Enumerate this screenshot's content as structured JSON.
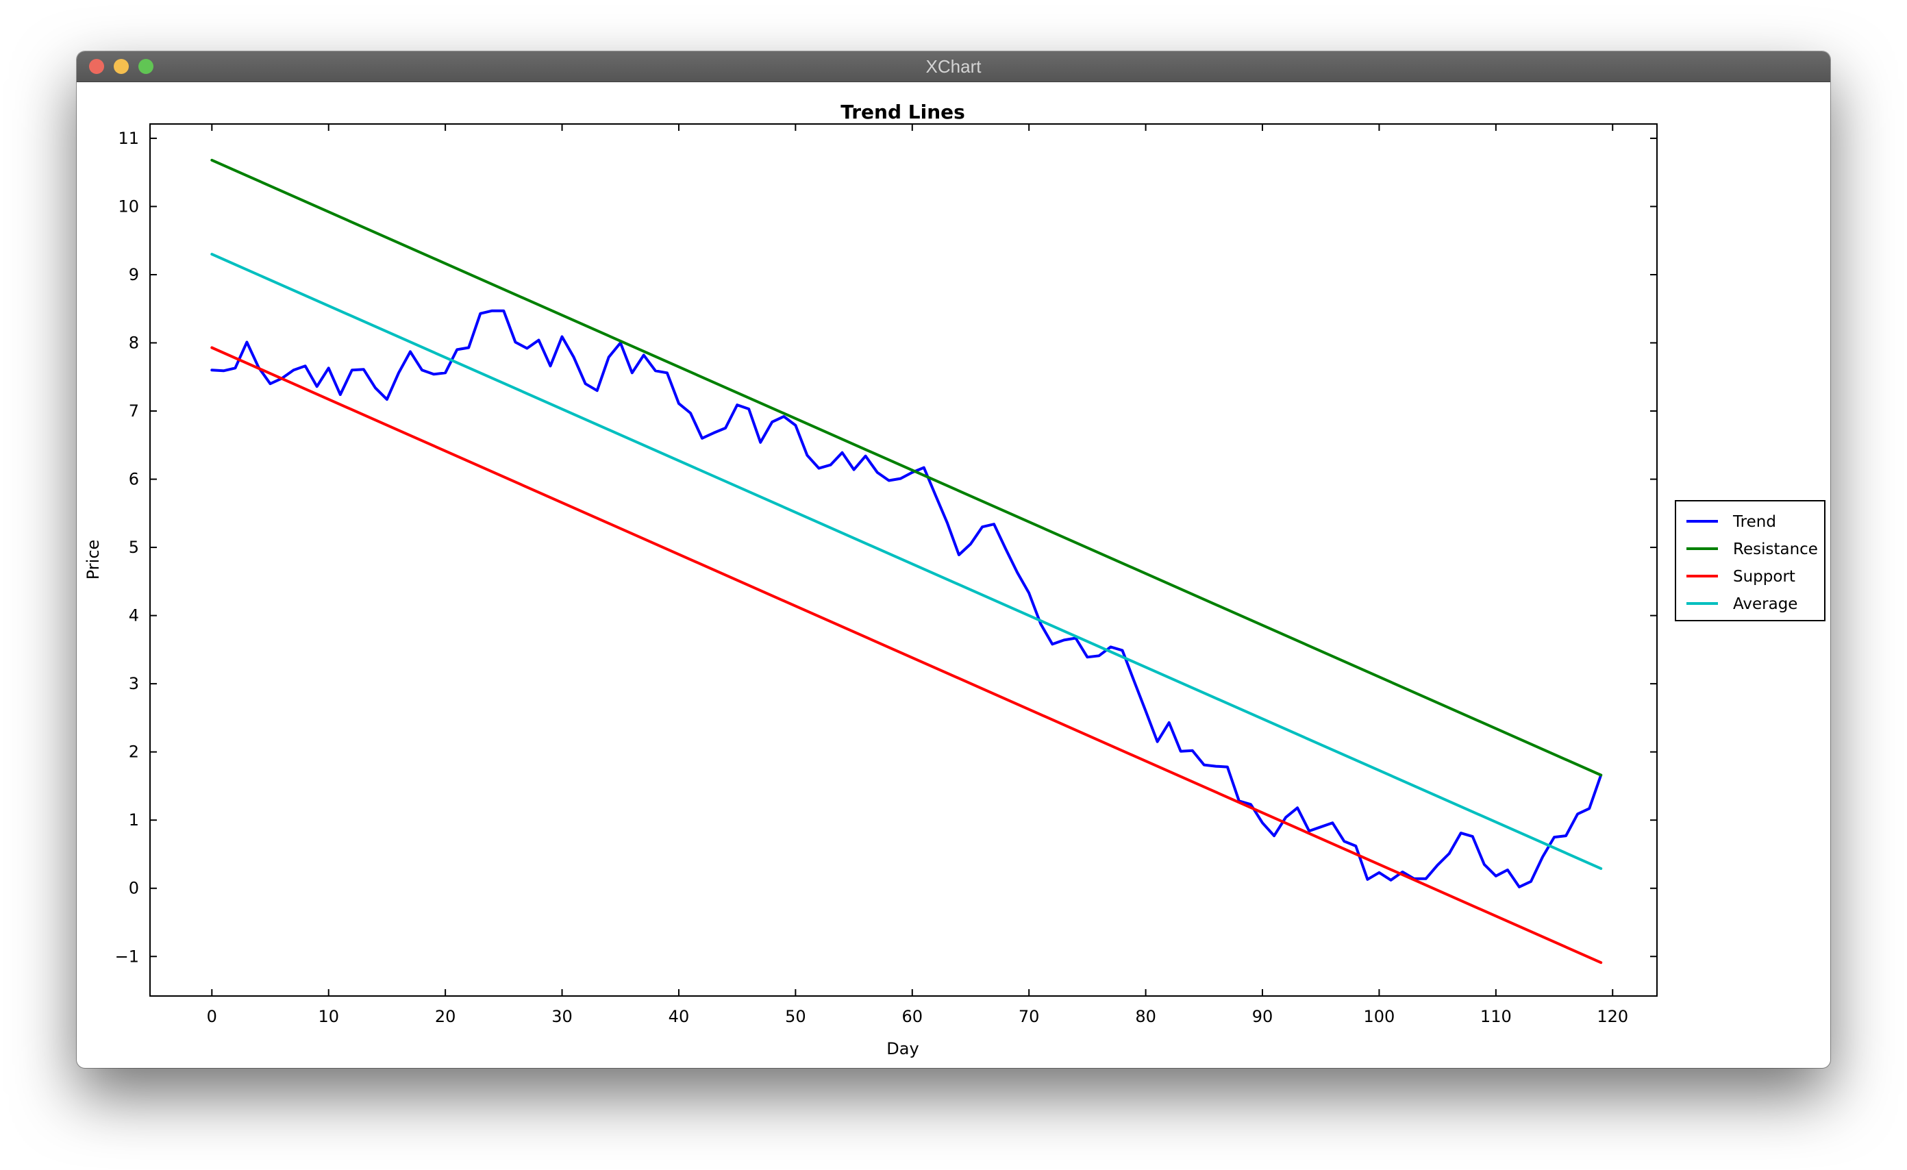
{
  "window": {
    "title": "XChart",
    "buttons": [
      {
        "name": "close",
        "color": "#ed6a5e"
      },
      {
        "name": "minimize",
        "color": "#f5bf4f"
      },
      {
        "name": "zoom",
        "color": "#61c554"
      }
    ]
  },
  "chart_data": {
    "type": "line",
    "title": "Trend Lines",
    "xlabel": "Day",
    "ylabel": "Price",
    "xlim": [
      -5.3,
      123.8
    ],
    "ylim": [
      -1.58,
      11.21
    ],
    "xticks": [
      0,
      10,
      20,
      30,
      40,
      50,
      60,
      70,
      80,
      90,
      100,
      110,
      120
    ],
    "yticks": [
      -1,
      0,
      1,
      2,
      3,
      4,
      5,
      6,
      7,
      8,
      9,
      10,
      11
    ],
    "ytick_labels": [
      "−1",
      "0",
      "1",
      "2",
      "3",
      "4",
      "5",
      "6",
      "7",
      "8",
      "9",
      "10",
      "11"
    ],
    "grid": false,
    "legend_position": "right",
    "series": [
      {
        "name": "Trend",
        "color": "#0000ff",
        "x": [
          0,
          1,
          2,
          3,
          4,
          5,
          6,
          7,
          8,
          9,
          10,
          11,
          12,
          13,
          14,
          15,
          16,
          17,
          18,
          19,
          20,
          21,
          22,
          23,
          24,
          25,
          26,
          27,
          28,
          29,
          30,
          31,
          32,
          33,
          34,
          35,
          36,
          37,
          38,
          39,
          40,
          41,
          42,
          43,
          44,
          45,
          46,
          47,
          48,
          49,
          50,
          51,
          52,
          53,
          54,
          55,
          56,
          57,
          58,
          59,
          60,
          61,
          62,
          63,
          64,
          65,
          66,
          67,
          68,
          69,
          70,
          71,
          72,
          73,
          74,
          75,
          76,
          77,
          78,
          79,
          80,
          81,
          82,
          83,
          84,
          85,
          86,
          87,
          88,
          89,
          90,
          91,
          92,
          93,
          94,
          95,
          96,
          97,
          98,
          99,
          100,
          101,
          102,
          103,
          104,
          105,
          106,
          107,
          108,
          109,
          110,
          111,
          112,
          113,
          114,
          115,
          116,
          117,
          118,
          119
        ],
        "y": [
          7.6,
          7.59,
          7.63,
          8.01,
          7.64,
          7.4,
          7.48,
          7.6,
          7.66,
          7.36,
          7.63,
          7.24,
          7.6,
          7.61,
          7.34,
          7.17,
          7.56,
          7.87,
          7.6,
          7.54,
          7.56,
          7.9,
          7.93,
          8.43,
          8.47,
          8.47,
          8.01,
          7.92,
          8.04,
          7.66,
          8.09,
          7.79,
          7.4,
          7.3,
          7.79,
          8.0,
          7.56,
          7.82,
          7.59,
          7.56,
          7.11,
          6.97,
          6.6,
          6.68,
          6.75,
          7.09,
          7.03,
          6.54,
          6.84,
          6.92,
          6.79,
          6.35,
          6.16,
          6.21,
          6.39,
          6.14,
          6.34,
          6.1,
          5.98,
          6.01,
          6.1,
          6.17,
          5.76,
          5.36,
          4.89,
          5.05,
          5.3,
          5.34,
          4.98,
          4.63,
          4.33,
          3.88,
          3.58,
          3.64,
          3.67,
          3.39,
          3.41,
          3.54,
          3.49,
          3.04,
          2.6,
          2.15,
          2.43,
          2.01,
          2.02,
          1.81,
          1.79,
          1.78,
          1.28,
          1.23,
          0.96,
          0.77,
          1.04,
          1.18,
          0.84,
          0.9,
          0.96,
          0.69,
          0.62,
          0.13,
          0.23,
          0.12,
          0.24,
          0.14,
          0.14,
          0.34,
          0.51,
          0.81,
          0.76,
          0.35,
          0.18,
          0.27,
          0.02,
          0.1,
          0.46,
          0.75,
          0.77,
          1.09,
          1.17,
          1.66
        ]
      },
      {
        "name": "Resistance",
        "color": "#008000",
        "x": [
          0,
          119
        ],
        "y": [
          10.68,
          1.66
        ]
      },
      {
        "name": "Support",
        "color": "#ff0000",
        "x": [
          0,
          119
        ],
        "y": [
          7.93,
          -1.09
        ]
      },
      {
        "name": "Average",
        "color": "#00bfbf",
        "x": [
          0,
          119
        ],
        "y": [
          9.3,
          0.29
        ]
      }
    ]
  }
}
